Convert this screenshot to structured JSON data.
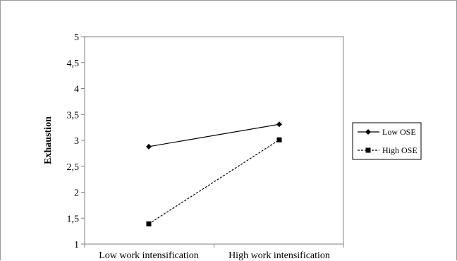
{
  "chart_data": {
    "type": "line",
    "categories": [
      "Low work intensification",
      "High work intensification"
    ],
    "ylabel": "Exhaustion",
    "xlabel": "",
    "ylim": [
      1,
      5
    ],
    "yticks": [
      "1",
      "1,5",
      "2",
      "2,5",
      "3",
      "3,5",
      "4",
      "4,5",
      "5"
    ],
    "series": [
      {
        "name": "Low OSE",
        "values": [
          2.88,
          3.31
        ],
        "line": "solid",
        "marker": "diamond",
        "color": "#000000"
      },
      {
        "name": "High OSE",
        "values": [
          1.39,
          3.01
        ],
        "line": "dashed",
        "marker": "square",
        "color": "#000000"
      }
    ],
    "legend_position": "right",
    "grid": false
  }
}
